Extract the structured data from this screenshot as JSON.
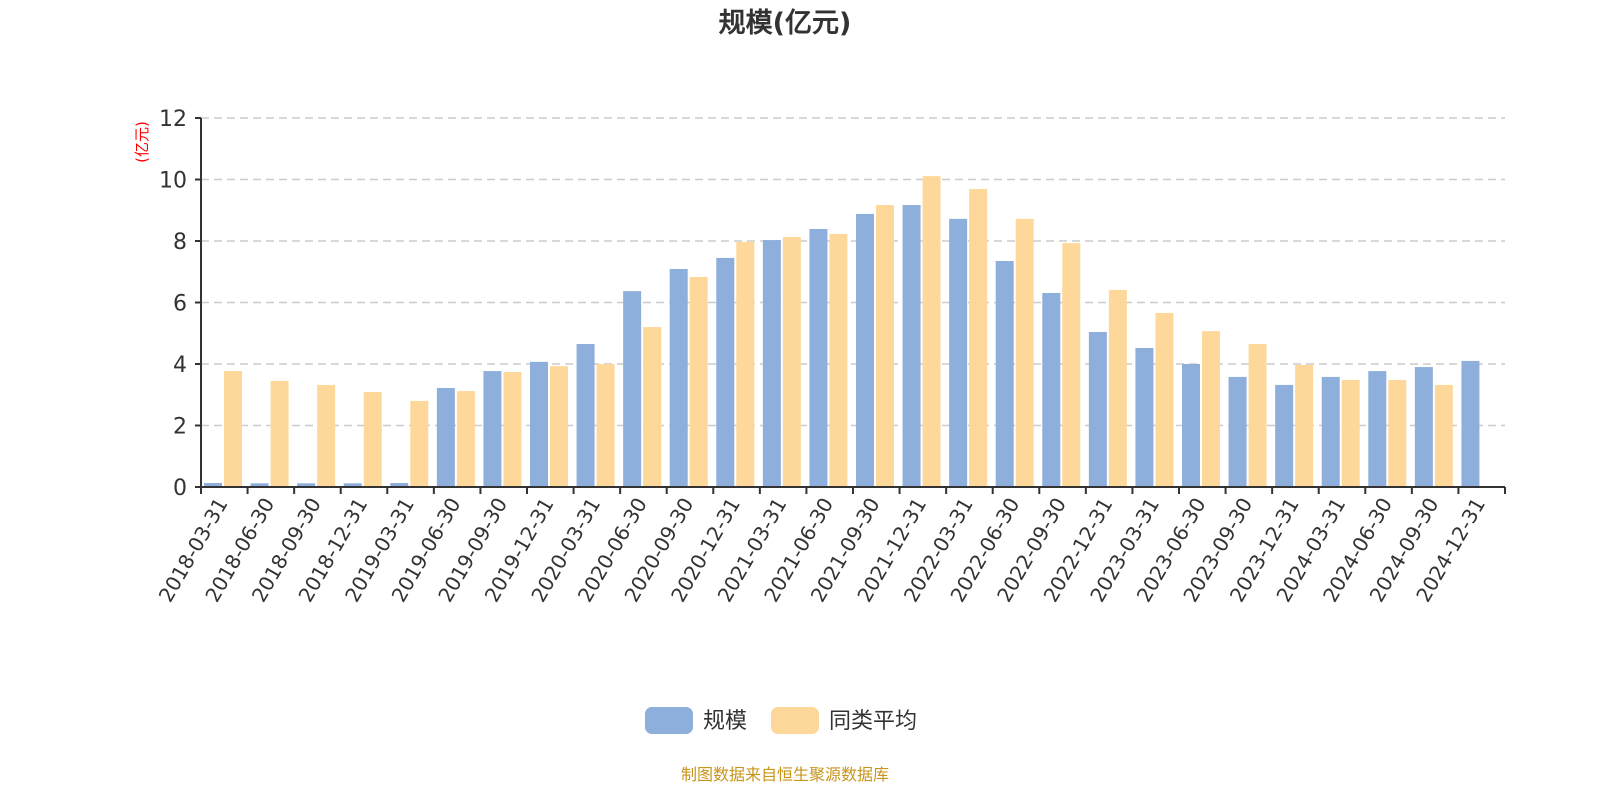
{
  "chart_data": {
    "type": "bar",
    "title": "规模(亿元)",
    "ylabel": "(亿元)",
    "xlabel": "",
    "ylim": [
      0,
      12
    ],
    "yticks": [
      0,
      2,
      4,
      6,
      8,
      10,
      12
    ],
    "grid": true,
    "legend_position": "bottom",
    "categories": [
      "2018-03-31",
      "2018-06-30",
      "2018-09-30",
      "2018-12-31",
      "2019-03-31",
      "2019-06-30",
      "2019-09-30",
      "2019-12-31",
      "2020-03-31",
      "2020-06-30",
      "2020-09-30",
      "2020-12-31",
      "2021-03-31",
      "2021-06-30",
      "2021-09-30",
      "2021-12-31",
      "2022-03-31",
      "2022-06-30",
      "2022-09-30",
      "2022-12-31",
      "2023-03-31",
      "2023-06-30",
      "2023-09-30",
      "2023-12-31",
      "2024-03-31",
      "2024-06-30",
      "2024-09-30",
      "2024-12-31"
    ],
    "series": [
      {
        "name": "规模",
        "color": "#8eaedb",
        "values": [
          0.13,
          0.12,
          0.12,
          0.12,
          0.13,
          3.22,
          3.77,
          4.07,
          4.65,
          6.37,
          7.09,
          7.45,
          8.03,
          8.39,
          8.88,
          9.17,
          8.72,
          7.35,
          6.31,
          5.04,
          4.52,
          4.0,
          3.58,
          3.32,
          3.58,
          3.77,
          3.9,
          4.1
        ]
      },
      {
        "name": "同类平均",
        "color": "#fdd89a",
        "values": [
          3.77,
          3.45,
          3.32,
          3.09,
          2.8,
          3.12,
          3.74,
          3.93,
          4.0,
          5.2,
          6.83,
          7.97,
          8.13,
          8.23,
          9.17,
          10.11,
          9.69,
          8.72,
          7.93,
          6.41,
          5.66,
          5.07,
          4.65,
          3.97,
          3.48,
          3.48,
          3.32,
          null
        ]
      }
    ]
  },
  "footer": "制图数据来自恒生聚源数据库",
  "colors": {
    "title": "#333333",
    "ylabel": "#ff0000",
    "footer": "#c8941a",
    "grid": "#cccccc",
    "axis": "#333333"
  }
}
